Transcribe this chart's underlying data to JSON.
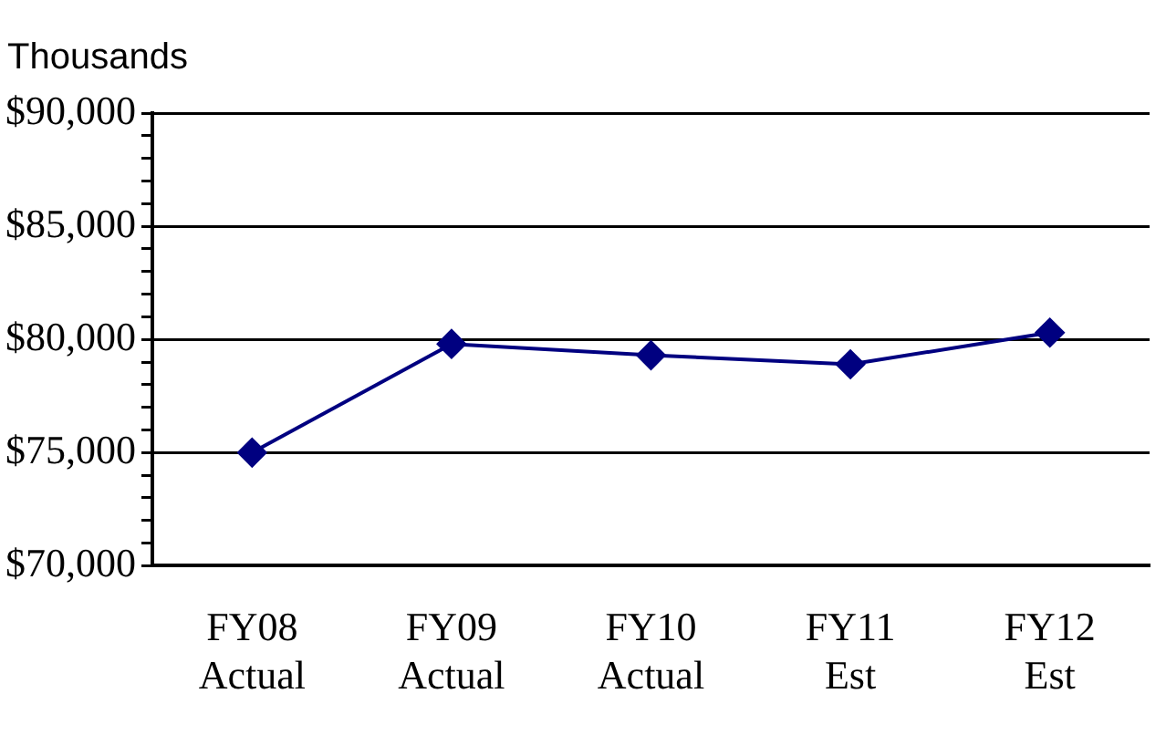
{
  "chart_data": {
    "type": "line",
    "ylabel": "Thousands",
    "categories": [
      "FY08 Actual",
      "FY09 Actual",
      "FY10 Actual",
      "FY11 Est",
      "FY12 Est"
    ],
    "series": [
      {
        "color": "#000080",
        "values": [
          75000,
          79800,
          79300,
          78900,
          80300
        ]
      }
    ],
    "ylim": [
      70000,
      90000
    ],
    "yticks": [
      {
        "value": 70000,
        "label": "$70,000"
      },
      {
        "value": 71000,
        "label": null
      },
      {
        "value": 72000,
        "label": null
      },
      {
        "value": 73000,
        "label": null
      },
      {
        "value": 74000,
        "label": null
      },
      {
        "value": 75000,
        "label": "$75,000"
      },
      {
        "value": 76000,
        "label": null
      },
      {
        "value": 77000,
        "label": null
      },
      {
        "value": 78000,
        "label": null
      },
      {
        "value": 79000,
        "label": null
      },
      {
        "value": 80000,
        "label": "$80,000"
      },
      {
        "value": 81000,
        "label": null
      },
      {
        "value": 82000,
        "label": null
      },
      {
        "value": 83000,
        "label": null
      },
      {
        "value": 84000,
        "label": null
      },
      {
        "value": 85000,
        "label": "$85,000"
      },
      {
        "value": 86000,
        "label": null
      },
      {
        "value": 87000,
        "label": null
      },
      {
        "value": 88000,
        "label": null
      },
      {
        "value": 89000,
        "label": null
      },
      {
        "value": 90000,
        "label": "$90,000"
      }
    ],
    "grid": "y",
    "marker": "diamond",
    "line_style": "solid",
    "legend": false
  }
}
